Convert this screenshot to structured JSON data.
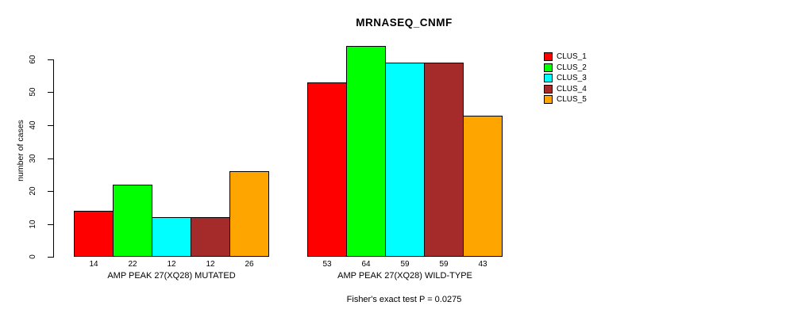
{
  "chart_data": {
    "type": "bar",
    "title": "MRNASEQ_CNMF",
    "ylabel": "number of cases",
    "xlabel": "",
    "ylim": [
      0,
      60
    ],
    "yticks": [
      0,
      10,
      20,
      30,
      40,
      50,
      60
    ],
    "grid": false,
    "legend_position": "right",
    "annotation": "Fisher's exact test P = 0.0275",
    "categories": [
      "AMP PEAK 27(XQ28) MUTATED",
      "AMP PEAK 27(XQ28) WILD-TYPE"
    ],
    "series": [
      {
        "name": "CLUS_1",
        "color": "#FF0000",
        "values": [
          14,
          53
        ]
      },
      {
        "name": "CLUS_2",
        "color": "#00FF00",
        "values": [
          22,
          64
        ]
      },
      {
        "name": "CLUS_3",
        "color": "#00FFFF",
        "values": [
          12,
          59
        ]
      },
      {
        "name": "CLUS_4",
        "color": "#A52A2A",
        "values": [
          12,
          59
        ]
      },
      {
        "name": "CLUS_5",
        "color": "#FFA500",
        "values": [
          26,
          43
        ]
      }
    ]
  }
}
